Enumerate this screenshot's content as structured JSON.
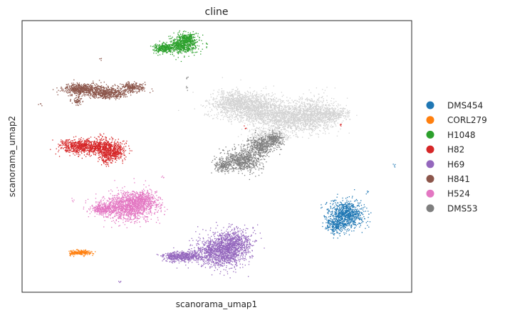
{
  "chart_data": {
    "type": "scatter",
    "title": "cline",
    "xlabel": "scanorama_umap1",
    "ylabel": "scanorama_umap2",
    "grid": false,
    "legend_position": "right",
    "series": [
      {
        "name": "DMS454",
        "color": "#1f77b4"
      },
      {
        "name": "CORL279",
        "color": "#ff7f0e"
      },
      {
        "name": "H1048",
        "color": "#2ca02c"
      },
      {
        "name": "H82",
        "color": "#d62728"
      },
      {
        "name": "H69",
        "color": "#9467bd"
      },
      {
        "name": "H841",
        "color": "#8c564b"
      },
      {
        "name": "H524",
        "color": "#e377c2"
      },
      {
        "name": "DMS53",
        "color": "#7f7f7f"
      }
    ],
    "unlabeled_cluster_color": "#d3d3d3"
  }
}
